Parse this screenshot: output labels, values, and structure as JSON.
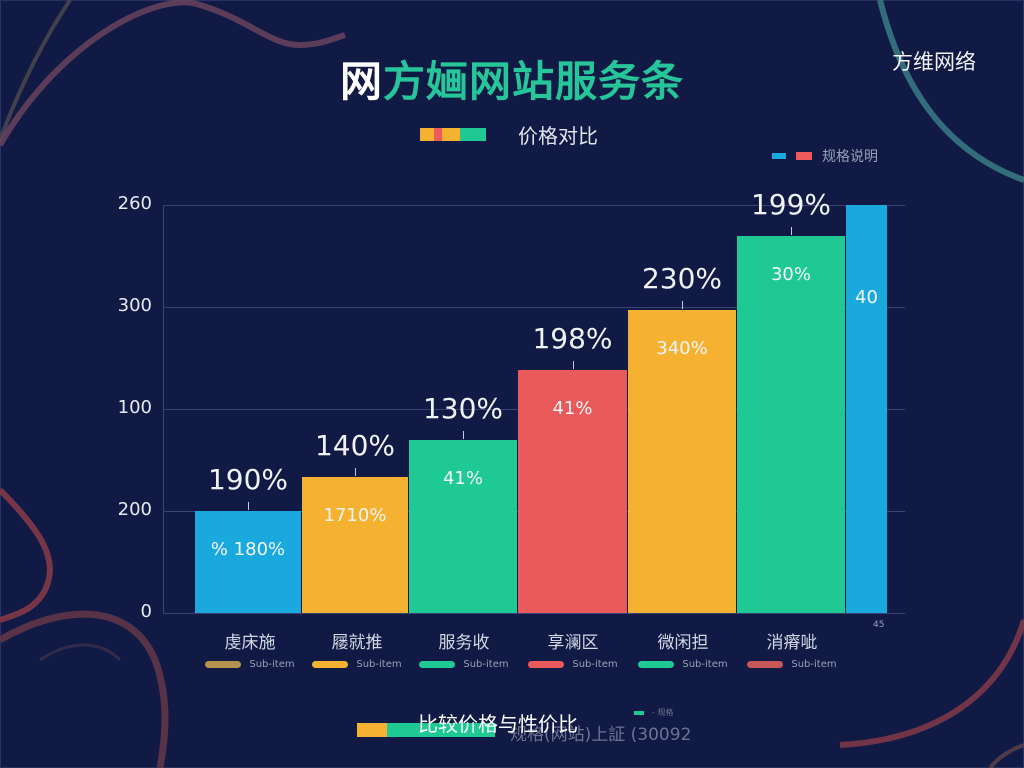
{
  "header": {
    "title_first_char": "网",
    "title_rest": "方婳网站服务条",
    "brand": "方维网络",
    "subtitle": "价格对比",
    "subtitle_bar_colors": [
      "#f5b231",
      "#ef5b5b",
      "#f5b231",
      "#1ec994"
    ]
  },
  "legend_top": {
    "items": [
      {
        "color": "#1aa9dd",
        "label": ""
      },
      {
        "color": "#ef5b5b",
        "label": "规格说明"
      }
    ]
  },
  "colors": {
    "background": "#111a44",
    "grid": "#3a4474",
    "blue": "#1aa9dd",
    "orange": "#f5b231",
    "green": "#1ec994",
    "red": "#e95a5a"
  },
  "chart_data": {
    "type": "bar",
    "title": "网方婳网站服务条",
    "subtitle": "价格对比",
    "xlabel": "",
    "ylabel": "",
    "y_tick_labels": [
      "260",
      "300",
      "100",
      "200",
      "0"
    ],
    "ylim": [
      0,
      400
    ],
    "grid": true,
    "categories": [
      "虔床施",
      "屦就推",
      "服务收",
      "享澜区",
      "微闲担",
      "消瘠呲",
      ""
    ],
    "values": [
      100,
      133,
      170,
      238,
      297,
      370,
      400
    ],
    "top_labels": [
      "190%",
      "140%",
      "130%",
      "198%",
      "230%",
      "199%",
      ""
    ],
    "inner_labels": [
      "% 180%",
      "1710%",
      "41%",
      "41%",
      "340%",
      "30%",
      "40"
    ],
    "bar_colors": [
      "#1aa9dd",
      "#f5b231",
      "#1ec994",
      "#e95a5a",
      "#f5b231",
      "#1ec994",
      "#1aa9dd"
    ],
    "category_sub_labels": [
      "Sub-item",
      "Sub-item",
      "Sub-item",
      "Sub-item",
      "Sub-item",
      "Sub-item"
    ],
    "category_sub_colors": [
      "#b4944c",
      "#f5b231",
      "#1ec994",
      "#e95a5a",
      "#1ec994",
      "#c75656"
    ],
    "legend_position": "top-right"
  },
  "footer": {
    "caption": "比较价格与性价比",
    "ghost_text": "规格(网站)上証 (30092",
    "bar_segments": [
      {
        "color": "#f5b231",
        "width": 30
      },
      {
        "color": "#1ec994",
        "width": 108
      }
    ],
    "legend_label": "- 规格"
  },
  "axis_note": "45"
}
